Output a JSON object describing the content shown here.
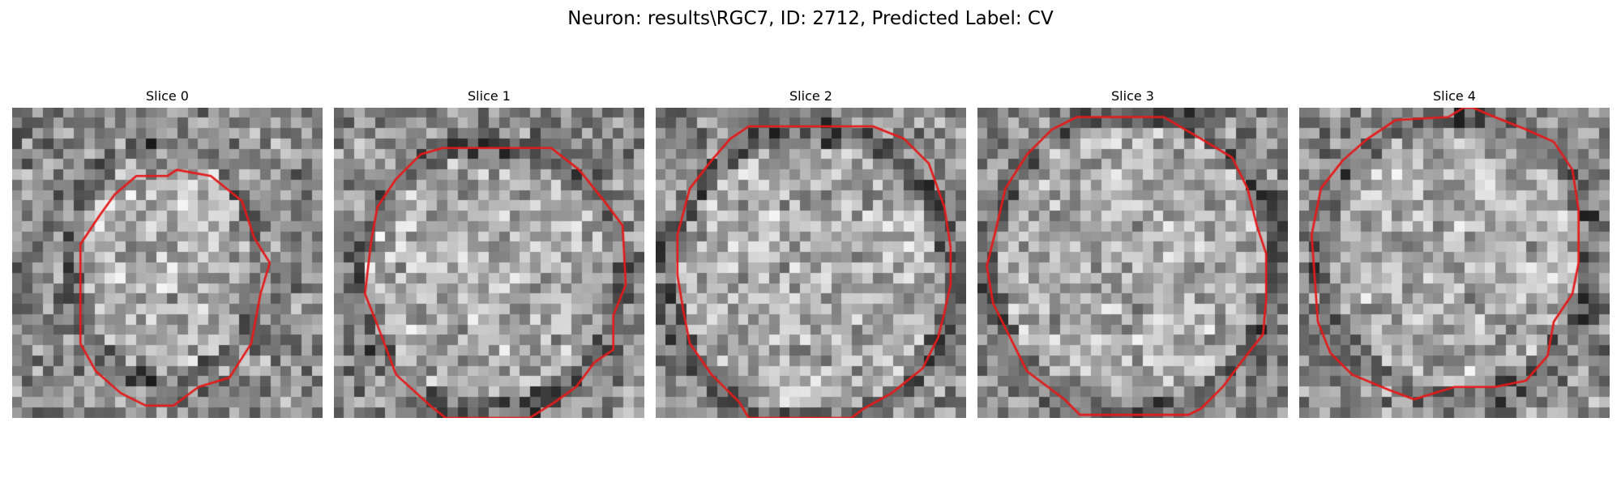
{
  "figure": {
    "title": "Neuron: results\\RGC7, ID: 2712, Predicted Label: CV",
    "colormap": "gray",
    "contour_color": "#e51a1a",
    "grid_size": 30
  },
  "slices": [
    {
      "label": "Slice 0",
      "seed": 11,
      "blob_center": [
        0.49,
        0.5
      ],
      "blob_radius": [
        0.29,
        0.37
      ],
      "contour": [
        [
          0.53,
          0.2
        ],
        [
          0.64,
          0.22
        ],
        [
          0.74,
          0.3
        ],
        [
          0.78,
          0.42
        ],
        [
          0.83,
          0.5
        ],
        [
          0.8,
          0.6
        ],
        [
          0.77,
          0.76
        ],
        [
          0.7,
          0.87
        ],
        [
          0.6,
          0.9
        ],
        [
          0.52,
          0.96
        ],
        [
          0.43,
          0.96
        ],
        [
          0.35,
          0.92
        ],
        [
          0.27,
          0.85
        ],
        [
          0.22,
          0.76
        ],
        [
          0.22,
          0.57
        ],
        [
          0.22,
          0.44
        ],
        [
          0.28,
          0.35
        ],
        [
          0.33,
          0.28
        ],
        [
          0.4,
          0.22
        ],
        [
          0.5,
          0.22
        ]
      ]
    },
    {
      "label": "Slice 1",
      "seed": 23,
      "blob_center": [
        0.5,
        0.55
      ],
      "blob_radius": [
        0.41,
        0.41
      ],
      "contour": [
        [
          0.35,
          0.13
        ],
        [
          0.7,
          0.13
        ],
        [
          0.79,
          0.2
        ],
        [
          0.87,
          0.3
        ],
        [
          0.93,
          0.38
        ],
        [
          0.94,
          0.57
        ],
        [
          0.9,
          0.67
        ],
        [
          0.9,
          0.78
        ],
        [
          0.84,
          0.82
        ],
        [
          0.78,
          0.9
        ],
        [
          0.71,
          0.95
        ],
        [
          0.63,
          1.0
        ],
        [
          0.61,
          1.0
        ],
        [
          0.36,
          1.0
        ],
        [
          0.31,
          0.96
        ],
        [
          0.2,
          0.86
        ],
        [
          0.14,
          0.7
        ],
        [
          0.1,
          0.6
        ],
        [
          0.12,
          0.43
        ],
        [
          0.14,
          0.32
        ],
        [
          0.2,
          0.23
        ],
        [
          0.28,
          0.15
        ]
      ]
    },
    {
      "label": "Slice 2",
      "seed": 37,
      "blob_center": [
        0.5,
        0.55
      ],
      "blob_radius": [
        0.45,
        0.45
      ],
      "contour": [
        [
          0.3,
          0.06
        ],
        [
          0.7,
          0.06
        ],
        [
          0.8,
          0.1
        ],
        [
          0.88,
          0.18
        ],
        [
          0.93,
          0.32
        ],
        [
          0.95,
          0.45
        ],
        [
          0.95,
          0.57
        ],
        [
          0.93,
          0.66
        ],
        [
          0.91,
          0.74
        ],
        [
          0.86,
          0.84
        ],
        [
          0.76,
          0.92
        ],
        [
          0.67,
          0.97
        ],
        [
          0.63,
          1.0
        ],
        [
          0.3,
          1.0
        ],
        [
          0.27,
          0.95
        ],
        [
          0.18,
          0.86
        ],
        [
          0.11,
          0.76
        ],
        [
          0.09,
          0.66
        ],
        [
          0.07,
          0.54
        ],
        [
          0.07,
          0.41
        ],
        [
          0.11,
          0.26
        ],
        [
          0.18,
          0.17
        ],
        [
          0.24,
          0.1
        ]
      ]
    },
    {
      "label": "Slice 3",
      "seed": 53,
      "blob_center": [
        0.5,
        0.5
      ],
      "blob_radius": [
        0.45,
        0.47
      ],
      "contour": [
        [
          0.32,
          0.03
        ],
        [
          0.6,
          0.03
        ],
        [
          0.72,
          0.1
        ],
        [
          0.82,
          0.16
        ],
        [
          0.87,
          0.26
        ],
        [
          0.9,
          0.38
        ],
        [
          0.93,
          0.47
        ],
        [
          0.93,
          0.62
        ],
        [
          0.92,
          0.73
        ],
        [
          0.85,
          0.82
        ],
        [
          0.79,
          0.9
        ],
        [
          0.72,
          0.97
        ],
        [
          0.68,
          0.99
        ],
        [
          0.64,
          0.99
        ],
        [
          0.33,
          0.99
        ],
        [
          0.28,
          0.94
        ],
        [
          0.16,
          0.85
        ],
        [
          0.1,
          0.73
        ],
        [
          0.05,
          0.63
        ],
        [
          0.03,
          0.51
        ],
        [
          0.06,
          0.39
        ],
        [
          0.09,
          0.26
        ],
        [
          0.16,
          0.15
        ],
        [
          0.24,
          0.07
        ]
      ]
    },
    {
      "label": "Slice 4",
      "seed": 71,
      "blob_center": [
        0.51,
        0.48
      ],
      "blob_radius": [
        0.42,
        0.44
      ],
      "contour": [
        [
          0.48,
          0.03
        ],
        [
          0.53,
          0.0
        ],
        [
          0.56,
          0.0
        ],
        [
          0.63,
          0.03
        ],
        [
          0.73,
          0.07
        ],
        [
          0.82,
          0.11
        ],
        [
          0.88,
          0.2
        ],
        [
          0.9,
          0.33
        ],
        [
          0.9,
          0.5
        ],
        [
          0.88,
          0.6
        ],
        [
          0.82,
          0.69
        ],
        [
          0.8,
          0.8
        ],
        [
          0.73,
          0.88
        ],
        [
          0.63,
          0.9
        ],
        [
          0.5,
          0.9
        ],
        [
          0.37,
          0.94
        ],
        [
          0.29,
          0.91
        ],
        [
          0.17,
          0.86
        ],
        [
          0.1,
          0.79
        ],
        [
          0.06,
          0.69
        ],
        [
          0.05,
          0.55
        ],
        [
          0.04,
          0.41
        ],
        [
          0.07,
          0.26
        ],
        [
          0.14,
          0.17
        ],
        [
          0.22,
          0.1
        ],
        [
          0.31,
          0.04
        ]
      ]
    }
  ]
}
